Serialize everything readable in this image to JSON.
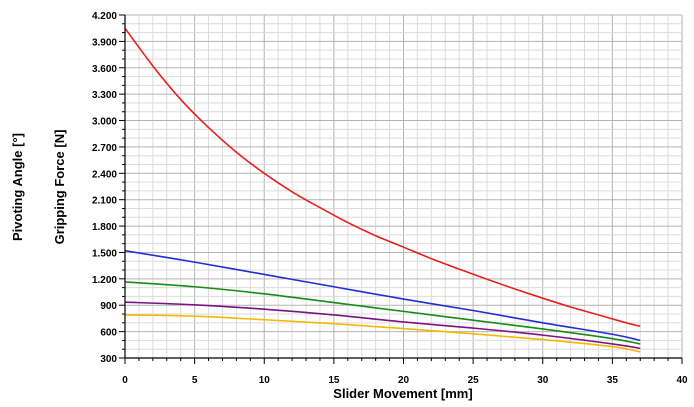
{
  "chart_data": {
    "type": "line",
    "title": "",
    "xlabel": "Slider Movement [mm]",
    "ylabel": "Gripping Force [N]",
    "ylabel2": "Pivoting Angle [°]",
    "xlim": [
      0,
      40
    ],
    "ylim": [
      300,
      4200
    ],
    "x_ticks": [
      0,
      5,
      10,
      15,
      20,
      25,
      30,
      35,
      40
    ],
    "x_tick_labels": [
      "0",
      "5",
      "10",
      "15",
      "20",
      "25",
      "30",
      "35",
      "40"
    ],
    "y_ticks": [
      300,
      600,
      900,
      1200,
      1500,
      1800,
      2100,
      2400,
      2700,
      3000,
      3300,
      3600,
      3900,
      4200
    ],
    "y_tick_labels": [
      "300",
      "600",
      "900",
      "1.200",
      "1.500",
      "1.800",
      "2.100",
      "2.400",
      "2.700",
      "3.000",
      "3.300",
      "3.600",
      "3.900",
      "4.200"
    ],
    "grid": true,
    "legend": "none",
    "series": [
      {
        "color": "#e8201c",
        "x": [
          0,
          2,
          4,
          6,
          8,
          10,
          12,
          14,
          16,
          18,
          20,
          22,
          24,
          26,
          28,
          30,
          32,
          34,
          36,
          37
        ],
        "y": [
          4050,
          3620,
          3240,
          2920,
          2640,
          2400,
          2190,
          2010,
          1840,
          1690,
          1560,
          1430,
          1310,
          1195,
          1085,
          980,
          880,
          790,
          700,
          660
        ]
      },
      {
        "color": "#1f2fd0",
        "x": [
          0,
          5,
          10,
          15,
          20,
          25,
          30,
          35,
          37
        ],
        "y": [
          1520,
          1390,
          1250,
          1110,
          970,
          840,
          700,
          570,
          500
        ]
      },
      {
        "color": "#178a17",
        "x": [
          0,
          5,
          10,
          15,
          20,
          25,
          30,
          35,
          37
        ],
        "y": [
          1165,
          1110,
          1030,
          930,
          830,
          730,
          630,
          520,
          460
        ]
      },
      {
        "color": "#7a1480",
        "x": [
          0,
          5,
          10,
          15,
          20,
          25,
          30,
          35,
          37
        ],
        "y": [
          935,
          905,
          855,
          790,
          710,
          640,
          560,
          460,
          410
        ]
      },
      {
        "color": "#f4b800",
        "x": [
          0,
          5,
          10,
          15,
          20,
          25,
          30,
          35,
          37
        ],
        "y": [
          790,
          775,
          735,
          690,
          635,
          575,
          510,
          430,
          370
        ]
      }
    ]
  }
}
